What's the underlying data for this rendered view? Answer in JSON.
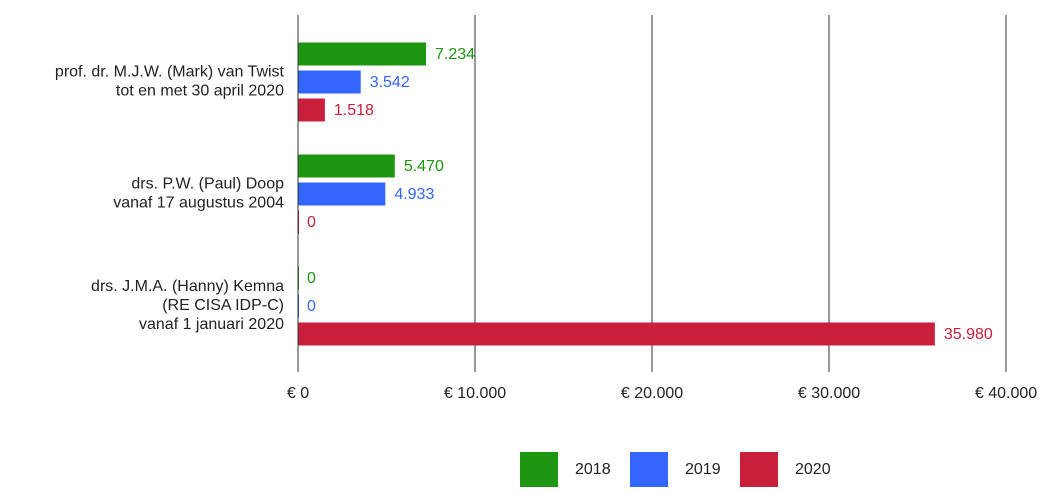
{
  "chart_data": {
    "type": "bar",
    "orientation": "horizontal",
    "categories": [
      "prof. dr. M.J.W. (Mark) van Twist\ntot en met 30 april 2020",
      "drs. P.W. (Paul) Doop\nvanaf 17 augustus 2004",
      "drs. J.M.A. (Hanny) Kemna\n(RE CISA IDP-C)\nvanaf 1 januari 2020"
    ],
    "series": [
      {
        "name": "2018",
        "color": "#1f9612",
        "values": [
          7234,
          5470,
          0
        ],
        "value_labels": [
          "7.234",
          "5.470",
          "0"
        ]
      },
      {
        "name": "2019",
        "color": "#3366ff",
        "values": [
          3542,
          4933,
          0
        ],
        "value_labels": [
          "3.542",
          "4.933",
          "0"
        ]
      },
      {
        "name": "2020",
        "color": "#c8203b",
        "values": [
          1518,
          0,
          35980
        ],
        "value_labels": [
          "1.518",
          "0",
          "35.980"
        ]
      }
    ],
    "xlim": [
      0,
      40000
    ],
    "xticks": [
      {
        "value": 0,
        "label": "€ 0"
      },
      {
        "value": 10000,
        "label": "€ 10.000"
      },
      {
        "value": 20000,
        "label": "€ 20.000"
      },
      {
        "value": 30000,
        "label": "€ 30.000"
      },
      {
        "value": 40000,
        "label": "€ 40.000"
      }
    ],
    "grid": true,
    "legend": "bottom"
  }
}
